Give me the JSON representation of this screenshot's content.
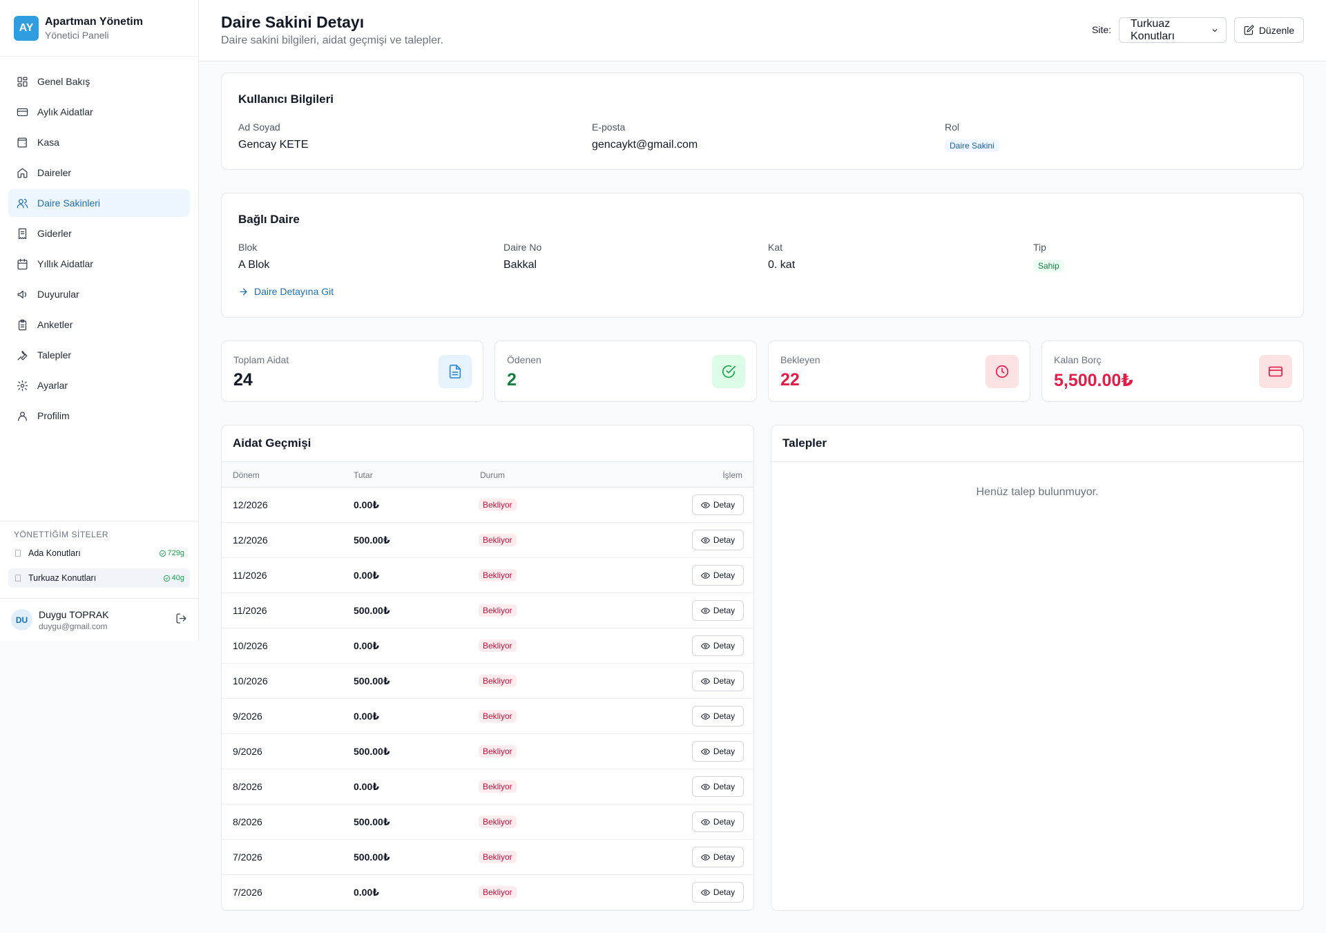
{
  "brand": {
    "logo": "AY",
    "title": "Apartman Yönetim",
    "subtitle": "Yönetici Paneli"
  },
  "nav": [
    {
      "label": "Genel Bakış",
      "icon": "dashboard-icon"
    },
    {
      "label": "Aylık Aidatlar",
      "icon": "credit-card-icon"
    },
    {
      "label": "Kasa",
      "icon": "wallet-icon"
    },
    {
      "label": "Daireler",
      "icon": "home-icon"
    },
    {
      "label": "Daire Sakinleri",
      "icon": "users-icon",
      "active": true
    },
    {
      "label": "Giderler",
      "icon": "receipt-icon"
    },
    {
      "label": "Yıllık Aidatlar",
      "icon": "calendar-icon"
    },
    {
      "label": "Duyurular",
      "icon": "megaphone-icon"
    },
    {
      "label": "Anketler",
      "icon": "clipboard-icon"
    },
    {
      "label": "Talepler",
      "icon": "wrench-icon"
    },
    {
      "label": "Ayarlar",
      "icon": "gear-icon"
    },
    {
      "label": "Profilim",
      "icon": "user-icon"
    }
  ],
  "sites": {
    "title": "YÖNETTİĞİM SİTELER",
    "items": [
      {
        "name": "Ada Konutları",
        "count": "729g"
      },
      {
        "name": "Turkuaz Konutları",
        "count": "40g"
      }
    ]
  },
  "user": {
    "initials": "DU",
    "name": "Duygu TOPRAK",
    "email": "duygu@gmail.com"
  },
  "header": {
    "title": "Daire Sakini Detayı",
    "subtitle": "Daire sakini bilgileri, aidat geçmişi ve talepler.",
    "site_label": "Site:",
    "site_value": "Turkuaz Konutları",
    "edit_label": "Düzenle"
  },
  "user_info": {
    "title": "Kullanıcı Bilgileri",
    "name_label": "Ad Soyad",
    "name": "Gencay KETE",
    "email_label": "E-posta",
    "email": "gencaykt@gmail.com",
    "role_label": "Rol",
    "role": "Daire Sakini"
  },
  "apartment": {
    "title": "Bağlı Daire",
    "block_label": "Blok",
    "block": "A Blok",
    "no_label": "Daire No",
    "no": "Bakkal",
    "floor_label": "Kat",
    "floor": "0. kat",
    "type_label": "Tip",
    "type": "Sahip",
    "link": "Daire Detayına Git"
  },
  "stats": [
    {
      "label": "Toplam Aidat",
      "value": "24",
      "color": "#111827",
      "icon": "document-icon",
      "bg": "#e6f2fc",
      "stroke": "#2b8ad6"
    },
    {
      "label": "Ödenen",
      "value": "2",
      "color": "#15803d",
      "icon": "check-circle-icon",
      "bg": "#dcfce7",
      "stroke": "#16a34a"
    },
    {
      "label": "Bekleyen",
      "value": "22",
      "color": "#e11d48",
      "icon": "clock-icon",
      "bg": "#fde2e4",
      "stroke": "#e11d48"
    },
    {
      "label": "Kalan Borç",
      "value": "5,500.00₺",
      "color": "#e11d48",
      "icon": "credit-card-icon",
      "bg": "#fde2e4",
      "stroke": "#e11d48"
    }
  ],
  "dues": {
    "title": "Aidat Geçmişi",
    "columns": [
      "Dönem",
      "Tutar",
      "Durum",
      "İşlem"
    ],
    "action_label": "Detay",
    "rows": [
      {
        "period": "12/2026",
        "amount": "0.00₺",
        "status": "Bekliyor"
      },
      {
        "period": "12/2026",
        "amount": "500.00₺",
        "status": "Bekliyor"
      },
      {
        "period": "11/2026",
        "amount": "0.00₺",
        "status": "Bekliyor"
      },
      {
        "period": "11/2026",
        "amount": "500.00₺",
        "status": "Bekliyor"
      },
      {
        "period": "10/2026",
        "amount": "0.00₺",
        "status": "Bekliyor"
      },
      {
        "period": "10/2026",
        "amount": "500.00₺",
        "status": "Bekliyor"
      },
      {
        "period": "9/2026",
        "amount": "0.00₺",
        "status": "Bekliyor"
      },
      {
        "period": "9/2026",
        "amount": "500.00₺",
        "status": "Bekliyor"
      },
      {
        "period": "8/2026",
        "amount": "0.00₺",
        "status": "Bekliyor"
      },
      {
        "period": "8/2026",
        "amount": "500.00₺",
        "status": "Bekliyor"
      },
      {
        "period": "7/2026",
        "amount": "500.00₺",
        "status": "Bekliyor"
      },
      {
        "period": "7/2026",
        "amount": "0.00₺",
        "status": "Bekliyor"
      }
    ]
  },
  "requests": {
    "title": "Talepler",
    "empty": "Henüz talep bulunmuyor."
  }
}
